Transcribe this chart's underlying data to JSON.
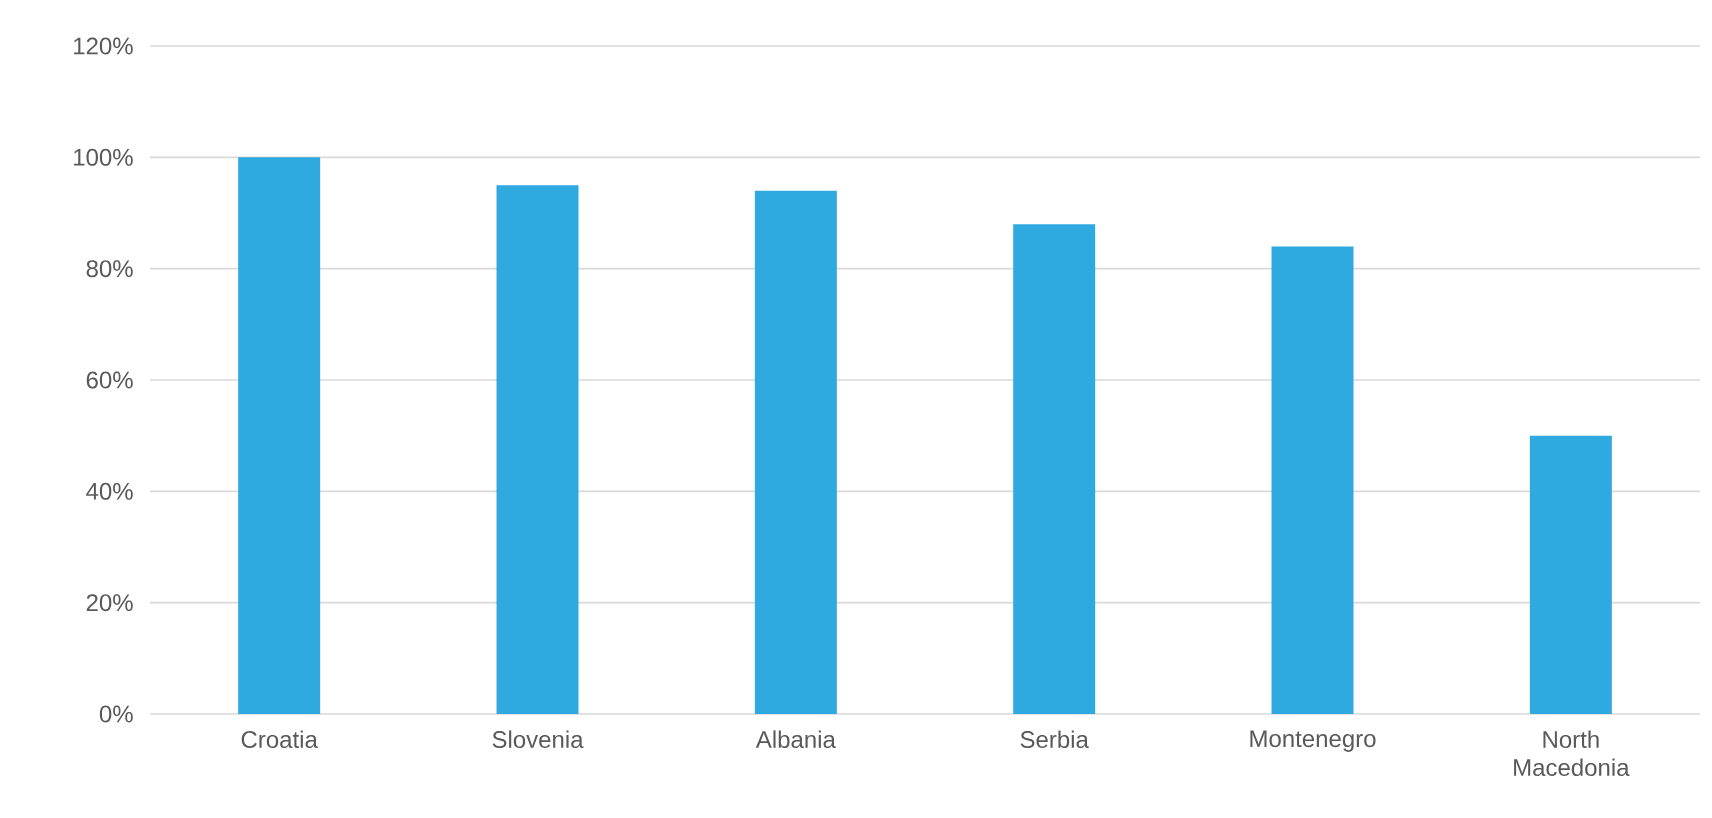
{
  "chart_data": {
    "type": "bar",
    "categories": [
      "Croatia",
      "Slovenia",
      "Albania",
      "Serbia",
      "Montenegro",
      "North Macedonia"
    ],
    "values": [
      100,
      95,
      94,
      88,
      84,
      50
    ],
    "color": "#2eaae1",
    "ylim": [
      0,
      120
    ],
    "yticks": [
      {
        "value": 0,
        "label": "0%"
      },
      {
        "value": 20,
        "label": "20%"
      },
      {
        "value": 40,
        "label": "40%"
      },
      {
        "value": 60,
        "label": "60%"
      },
      {
        "value": 80,
        "label": "80%"
      },
      {
        "value": 100,
        "label": "100%"
      },
      {
        "value": 120,
        "label": "120%"
      }
    ],
    "grid": "y"
  }
}
